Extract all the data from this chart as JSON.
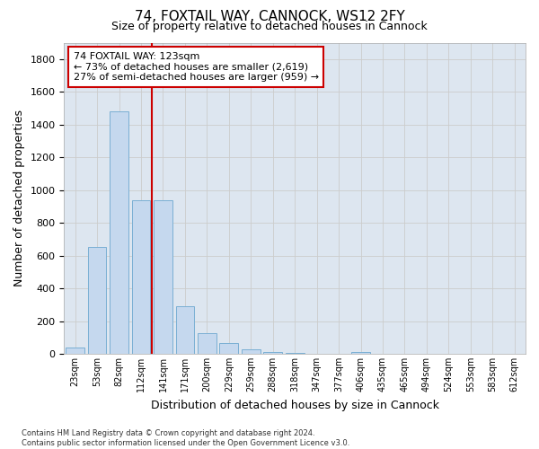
{
  "title": "74, FOXTAIL WAY, CANNOCK, WS12 2FY",
  "subtitle": "Size of property relative to detached houses in Cannock",
  "xlabel": "Distribution of detached houses by size in Cannock",
  "ylabel": "Number of detached properties",
  "categories": [
    "23sqm",
    "53sqm",
    "82sqm",
    "112sqm",
    "141sqm",
    "171sqm",
    "200sqm",
    "229sqm",
    "259sqm",
    "288sqm",
    "318sqm",
    "347sqm",
    "377sqm",
    "406sqm",
    "435sqm",
    "465sqm",
    "494sqm",
    "524sqm",
    "553sqm",
    "583sqm",
    "612sqm"
  ],
  "values": [
    38,
    650,
    1480,
    935,
    935,
    290,
    125,
    65,
    25,
    12,
    5,
    2,
    0,
    12,
    0,
    0,
    0,
    0,
    0,
    0,
    0
  ],
  "bar_color": "#c5d8ee",
  "bar_edge_color": "#7aafd4",
  "annotation_text": "74 FOXTAIL WAY: 123sqm\n← 73% of detached houses are smaller (2,619)\n27% of semi-detached houses are larger (959) →",
  "annotation_box_color": "#ffffff",
  "annotation_box_edge_color": "#cc0000",
  "red_line_color": "#cc0000",
  "ylim": [
    0,
    1900
  ],
  "yticks": [
    0,
    200,
    400,
    600,
    800,
    1000,
    1200,
    1400,
    1600,
    1800
  ],
  "grid_color": "#cccccc",
  "bg_color": "#dde6f0",
  "footnote": "Contains HM Land Registry data © Crown copyright and database right 2024.\nContains public sector information licensed under the Open Government Licence v3.0."
}
